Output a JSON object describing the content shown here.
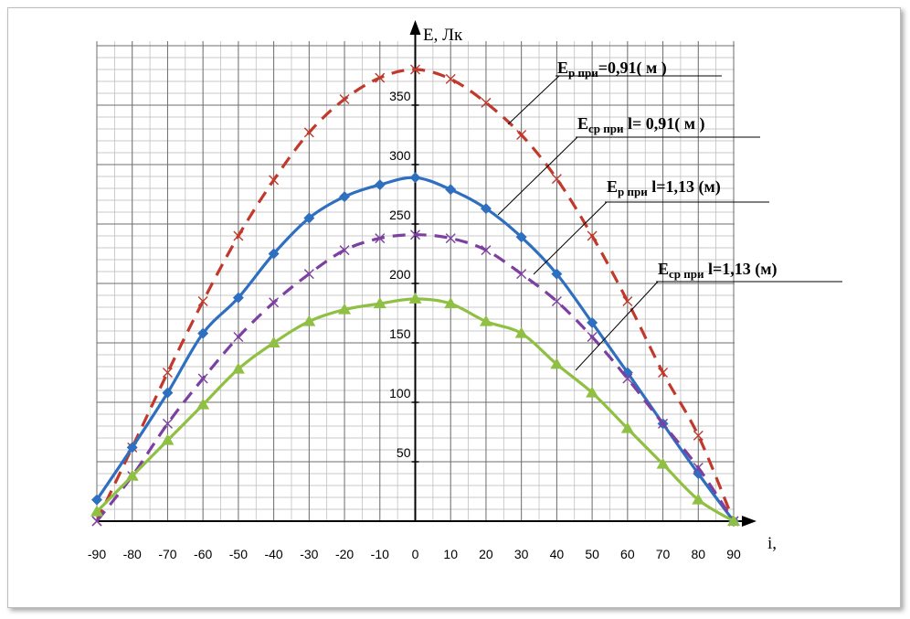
{
  "chart_data": {
    "type": "line",
    "xlabel": "i,",
    "ylabel": "E, Лк",
    "xlim": [
      -90,
      90
    ],
    "ylim": [
      0,
      400
    ],
    "grid": true,
    "x": [
      -90,
      -80,
      -70,
      -60,
      -50,
      -40,
      -30,
      -20,
      -10,
      0,
      10,
      20,
      30,
      40,
      50,
      60,
      70,
      80,
      90
    ],
    "x_ticks": [
      "-90",
      "-80",
      "-70",
      "-60",
      "-50",
      "-40",
      "-30",
      "-20",
      "-10",
      "0",
      "10",
      "20",
      "30",
      "40",
      "50",
      "60",
      "70",
      "80",
      "90"
    ],
    "y_ticks": [
      "50",
      "100",
      "150",
      "200",
      "250",
      "300",
      "350"
    ],
    "series": [
      {
        "color": "#c0392b",
        "line": "dashed",
        "marker": "x",
        "values": [
          0,
          62,
          125,
          185,
          240,
          287,
          327,
          355,
          373,
          380,
          372,
          352,
          325,
          288,
          240,
          185,
          125,
          72,
          0
        ]
      },
      {
        "color": "#2f6fbf",
        "line": "solid",
        "marker": "diamond",
        "values": [
          18,
          62,
          108,
          158,
          188,
          225,
          255,
          273,
          283,
          289,
          279,
          263,
          239,
          208,
          167,
          125,
          82,
          40,
          0
        ]
      },
      {
        "color": "#7d3fa0",
        "line": "dashed",
        "marker": "x",
        "values": [
          0,
          38,
          82,
          120,
          155,
          184,
          208,
          228,
          238,
          241,
          238,
          228,
          208,
          185,
          155,
          120,
          82,
          45,
          0
        ]
      },
      {
        "color": "#8fc043",
        "line": "solid",
        "marker": "triangle",
        "values": [
          8,
          38,
          68,
          98,
          128,
          150,
          168,
          178,
          183,
          187,
          183,
          168,
          158,
          132,
          108,
          78,
          48,
          18,
          0
        ]
      }
    ],
    "annotations": [
      {
        "main": "E",
        "sub": "р при",
        "rest": "=0,91( м )"
      },
      {
        "main": "E",
        "sub": "ср при",
        "rest": " l= 0,91( м )"
      },
      {
        "main": "E",
        "sub": "р при",
        "rest": " l=1,13 (м)"
      },
      {
        "main": "E",
        "sub": "ср при",
        "rest": "  l=1,13 (м)"
      }
    ]
  }
}
